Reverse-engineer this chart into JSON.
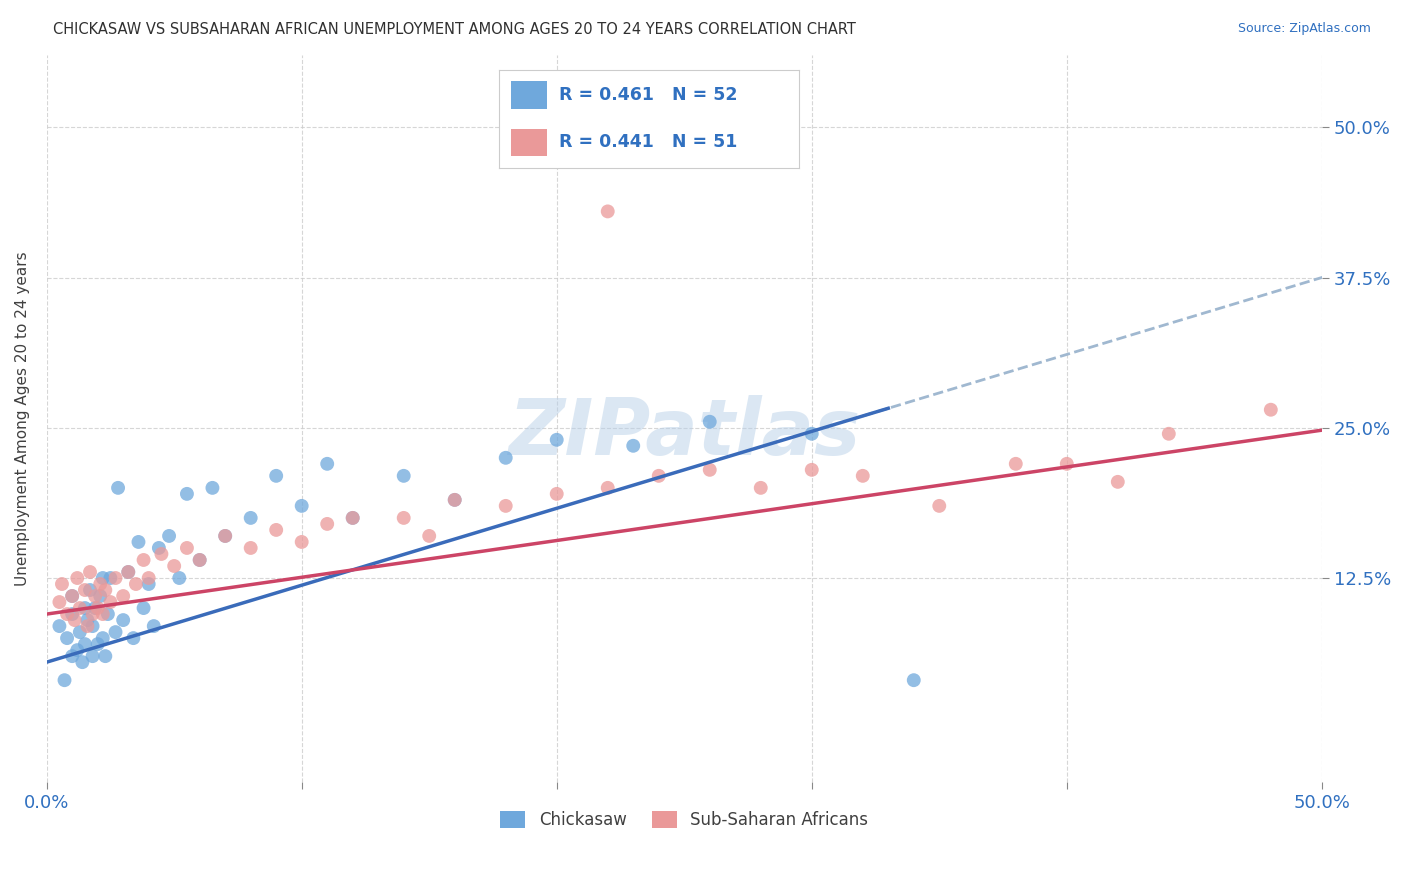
{
  "title": "CHICKASAW VS SUBSAHARAN AFRICAN UNEMPLOYMENT AMONG AGES 20 TO 24 YEARS CORRELATION CHART",
  "source": "Source: ZipAtlas.com",
  "ylabel": "Unemployment Among Ages 20 to 24 years",
  "xlim": [
    0.0,
    0.5
  ],
  "ylim": [
    -0.045,
    0.56
  ],
  "chickasaw_color": "#6fa8dc",
  "subafr_color": "#ea9999",
  "chickasaw_line_color": "#3a6bba",
  "subafr_line_color": "#cc4466",
  "dashed_line_color": "#a0b8d0",
  "legend_label1": "Chickasaw",
  "legend_label2": "Sub-Saharan Africans",
  "watermark": "ZIPatlas",
  "background_color": "#ffffff",
  "grid_color": "#cccccc",
  "title_color": "#303030",
  "axis_label_color": "#404040",
  "tick_color": "#3070c0",
  "blue_line_start_y": 0.055,
  "blue_line_end_y": 0.375,
  "pink_line_start_y": 0.095,
  "pink_line_end_y": 0.248,
  "dashed_line_start_x": 0.32,
  "dashed_line_end_x": 0.505,
  "dashed_line_start_y": 0.233,
  "dashed_line_end_y": 0.395,
  "chickasaw_x": [
    0.005,
    0.007,
    0.008,
    0.01,
    0.01,
    0.01,
    0.012,
    0.013,
    0.014,
    0.015,
    0.015,
    0.016,
    0.017,
    0.018,
    0.018,
    0.019,
    0.02,
    0.021,
    0.022,
    0.022,
    0.023,
    0.024,
    0.025,
    0.027,
    0.028,
    0.03,
    0.032,
    0.034,
    0.036,
    0.038,
    0.04,
    0.042,
    0.044,
    0.048,
    0.052,
    0.055,
    0.06,
    0.065,
    0.07,
    0.08,
    0.09,
    0.1,
    0.11,
    0.12,
    0.14,
    0.16,
    0.18,
    0.2,
    0.23,
    0.26,
    0.3,
    0.34
  ],
  "chickasaw_y": [
    0.085,
    0.04,
    0.075,
    0.06,
    0.095,
    0.11,
    0.065,
    0.08,
    0.055,
    0.07,
    0.1,
    0.09,
    0.115,
    0.06,
    0.085,
    0.1,
    0.07,
    0.11,
    0.075,
    0.125,
    0.06,
    0.095,
    0.125,
    0.08,
    0.2,
    0.09,
    0.13,
    0.075,
    0.155,
    0.1,
    0.12,
    0.085,
    0.15,
    0.16,
    0.125,
    0.195,
    0.14,
    0.2,
    0.16,
    0.175,
    0.21,
    0.185,
    0.22,
    0.175,
    0.21,
    0.19,
    0.225,
    0.24,
    0.235,
    0.255,
    0.245,
    0.04
  ],
  "subafr_x": [
    0.005,
    0.006,
    0.008,
    0.01,
    0.011,
    0.012,
    0.013,
    0.015,
    0.016,
    0.017,
    0.018,
    0.019,
    0.02,
    0.021,
    0.022,
    0.023,
    0.025,
    0.027,
    0.03,
    0.032,
    0.035,
    0.038,
    0.04,
    0.045,
    0.05,
    0.055,
    0.06,
    0.07,
    0.08,
    0.09,
    0.1,
    0.11,
    0.12,
    0.14,
    0.15,
    0.16,
    0.18,
    0.2,
    0.22,
    0.24,
    0.26,
    0.28,
    0.3,
    0.32,
    0.35,
    0.38,
    0.4,
    0.42,
    0.44,
    0.48,
    0.22
  ],
  "subafr_y": [
    0.105,
    0.12,
    0.095,
    0.11,
    0.09,
    0.125,
    0.1,
    0.115,
    0.085,
    0.13,
    0.095,
    0.11,
    0.1,
    0.12,
    0.095,
    0.115,
    0.105,
    0.125,
    0.11,
    0.13,
    0.12,
    0.14,
    0.125,
    0.145,
    0.135,
    0.15,
    0.14,
    0.16,
    0.15,
    0.165,
    0.155,
    0.17,
    0.175,
    0.175,
    0.16,
    0.19,
    0.185,
    0.195,
    0.2,
    0.21,
    0.215,
    0.2,
    0.215,
    0.21,
    0.185,
    0.22,
    0.22,
    0.205,
    0.245,
    0.265,
    0.43
  ]
}
